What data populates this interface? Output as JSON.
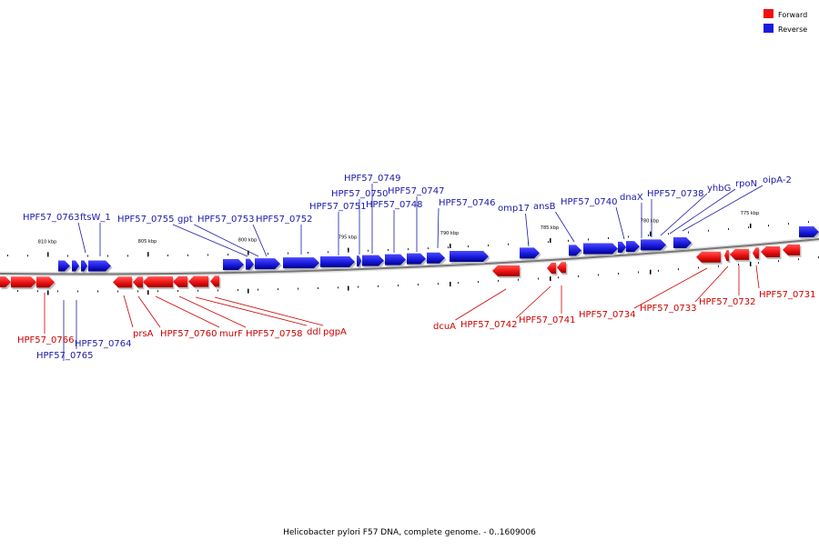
{
  "colors": {
    "forward": "#ee1111",
    "forward_dark": "#990000",
    "reverse": "#1a1add",
    "reverse_dark": "#00008a",
    "forward_label": "#cc0000",
    "reverse_label": "#1a1aa8",
    "backbone": "#888888"
  },
  "legend": {
    "forward": "Forward",
    "reverse": "Reverse"
  },
  "caption": "Helicobacter pylori F57 DNA, complete genome. - 0..1609006",
  "ticks": [
    "810 kbp",
    "805 kbp",
    "800 kbp",
    "795 kbp",
    "790 kbp",
    "785 kbp",
    "780 kbp",
    "775 kbp"
  ],
  "reverse_genes": [
    "HPF57_0763",
    "ftsW_1",
    "HPF57_0755",
    "gpt",
    "HPF57_0753",
    "HPF57_0752",
    "HPF57_0751",
    "HPF57_0750",
    "HPF57_0749",
    "HPF57_0748",
    "HPF57_0747",
    "HPF57_0746",
    "omp17",
    "ansB",
    "HPF57_0740",
    "dnaX",
    "HPF57_0738",
    "yhbG",
    "rpoN",
    "oipA-2",
    "HPF57_0764",
    "HPF57_0765"
  ],
  "forward_genes": [
    "HPF57_0766",
    "prsA",
    "HPF57_0760",
    "murF",
    "HPF57_0758",
    "ddl",
    "pgpA",
    "dcuA",
    "HPF57_0742",
    "HPF57_0741",
    "HPF57_0734",
    "HPF57_0733",
    "HPF57_0732",
    "HPF57_0731"
  ]
}
